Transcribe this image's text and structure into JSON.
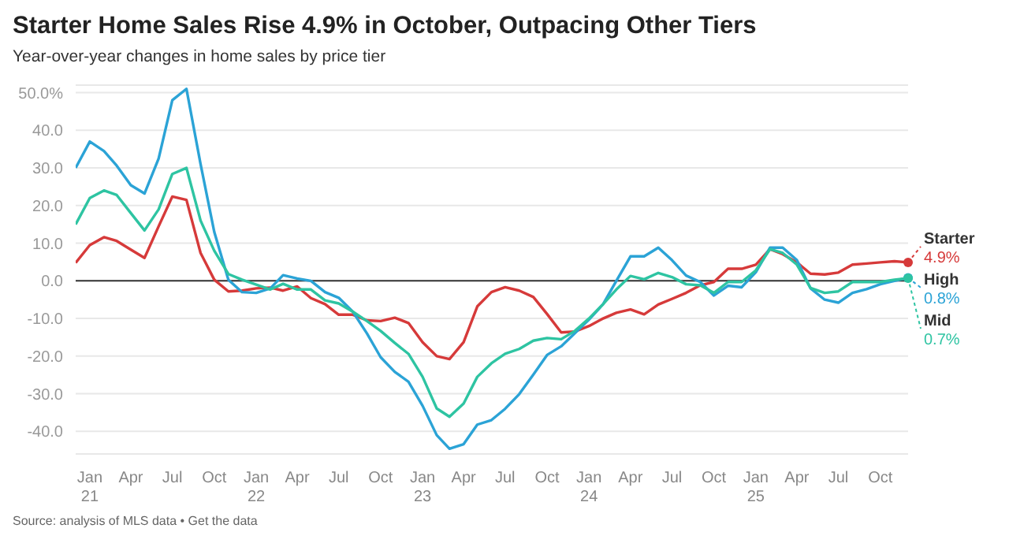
{
  "chart_data": {
    "type": "line",
    "title": "Starter Home Sales Rise 4.9% in October, Outpacing Other Tiers",
    "subtitle": "Year-over-year changes in home sales by price tier",
    "annotations": [
      "Source: analysis of MLS data • Get the data"
    ],
    "x": [
      "2020-12",
      "2021-01",
      "2021-02",
      "2021-03",
      "2021-04",
      "2021-05",
      "2021-06",
      "2021-07",
      "2021-08",
      "2021-09",
      "2021-10",
      "2021-11",
      "2021-12",
      "2022-01",
      "2022-02",
      "2022-03",
      "2022-04",
      "2022-05",
      "2022-06",
      "2022-07",
      "2022-08",
      "2022-09",
      "2022-10",
      "2022-11",
      "2022-12",
      "2023-01",
      "2023-02",
      "2023-03",
      "2023-04",
      "2023-05",
      "2023-06",
      "2023-07",
      "2023-08",
      "2023-09",
      "2023-10",
      "2023-11",
      "2023-12",
      "2024-01",
      "2024-02",
      "2024-03",
      "2024-04",
      "2024-05",
      "2024-06",
      "2024-07",
      "2024-08",
      "2024-09",
      "2024-10",
      "2024-11",
      "2024-12",
      "2025-01",
      "2025-02",
      "2025-03",
      "2025-04",
      "2025-05",
      "2025-06",
      "2025-07",
      "2025-08",
      "2025-09",
      "2025-10",
      "2025-11",
      "2025-12"
    ],
    "series": [
      {
        "name": "Starter",
        "color": "#d63a3a",
        "values": [
          4.8,
          9.5,
          11.6,
          10.6,
          8.3,
          6.1,
          14.5,
          22.4,
          21.5,
          7.4,
          0.3,
          -2.8,
          -2.6,
          -2,
          -1.8,
          -2.6,
          -1.5,
          -4.6,
          -6.2,
          -9,
          -9,
          -10.5,
          -10.7,
          -9.8,
          -11.2,
          -16.3,
          -20,
          -20.8,
          -16.3,
          -6.8,
          -3,
          -1.7,
          -2.6,
          -4.3,
          -8.8,
          -13.7,
          -13.5,
          -12,
          -10,
          -8.5,
          -7.6,
          -8.9,
          -6.3,
          -4.8,
          -3.2,
          -1.2,
          -0.3,
          3.2,
          3.2,
          4.3,
          8.4,
          7.1,
          4.9,
          1.9,
          1.7,
          2.2,
          4.3,
          4.6,
          4.9,
          5.2,
          4.9
        ],
        "value_labels": [
          null,
          null,
          null,
          null,
          null,
          null,
          null,
          null,
          null,
          null,
          null,
          null,
          null,
          null,
          null,
          null,
          null,
          null,
          null,
          null,
          null,
          null,
          null,
          null,
          null,
          null,
          null,
          null,
          null,
          null,
          null,
          null,
          null,
          null,
          null,
          null,
          null,
          null,
          null,
          null,
          null,
          null,
          null,
          null,
          null,
          null,
          null,
          null,
          null,
          null,
          null,
          null,
          null,
          null,
          null,
          null,
          null,
          null,
          null,
          null,
          "4.9%"
        ]
      },
      {
        "name": "High",
        "color": "#2ba3d6",
        "values": [
          30,
          37,
          34.5,
          30.6,
          25.4,
          23.2,
          32.5,
          48,
          51,
          31,
          13,
          0.3,
          -3,
          -3.2,
          -2,
          1.5,
          0.6,
          0,
          -3,
          -4.5,
          -8.2,
          -14,
          -20.3,
          -24.2,
          -26.8,
          -33.2,
          -41,
          -44.6,
          -43.4,
          -38.2,
          -37,
          -34,
          -30.1,
          -24.9,
          -19.7,
          -17.4,
          -13.9,
          -10.3,
          -6.2,
          0,
          6.5,
          6.5,
          8.8,
          5.5,
          1.4,
          -0.3,
          -3.9,
          -1.3,
          -1.7,
          2.3,
          8.8,
          8.8,
          5.5,
          -2,
          -5,
          -5.8,
          -3.2,
          -2.2,
          -0.9,
          0,
          0.8
        ],
        "value_labels": [
          null,
          null,
          null,
          null,
          null,
          null,
          null,
          null,
          null,
          null,
          null,
          null,
          null,
          null,
          null,
          null,
          null,
          null,
          null,
          null,
          null,
          null,
          null,
          null,
          null,
          null,
          null,
          null,
          null,
          null,
          null,
          null,
          null,
          null,
          null,
          null,
          null,
          null,
          null,
          null,
          null,
          null,
          null,
          null,
          null,
          null,
          null,
          null,
          null,
          null,
          null,
          null,
          null,
          null,
          null,
          null,
          null,
          null,
          null,
          null,
          "0.8%"
        ]
      },
      {
        "name": "Mid",
        "color": "#2ec4a2",
        "values": [
          15,
          22,
          24,
          22.8,
          18,
          13.4,
          19,
          28.4,
          30,
          16,
          8,
          1.8,
          0.3,
          -1,
          -2.3,
          -0.8,
          -2.3,
          -2.3,
          -5.2,
          -6,
          -8.2,
          -10.7,
          -13.3,
          -16.5,
          -19.4,
          -25.5,
          -33.9,
          -36.1,
          -32.6,
          -25.5,
          -21.9,
          -19.4,
          -18.1,
          -15.9,
          -15.2,
          -15.5,
          -13.3,
          -10,
          -6.2,
          -2.3,
          1.3,
          0.4,
          2.1,
          1,
          -0.9,
          -1.2,
          -3.2,
          -0.3,
          -0.3,
          2.8,
          8.4,
          7.4,
          4.3,
          -1.9,
          -3.2,
          -2.8,
          -0.3,
          -0.3,
          -0.3,
          0.3,
          0.7
        ],
        "value_labels": [
          null,
          null,
          null,
          null,
          null,
          null,
          null,
          null,
          null,
          null,
          null,
          null,
          null,
          null,
          null,
          null,
          null,
          null,
          null,
          null,
          null,
          null,
          null,
          null,
          null,
          null,
          null,
          null,
          null,
          null,
          null,
          null,
          null,
          null,
          null,
          null,
          null,
          null,
          null,
          null,
          null,
          null,
          null,
          null,
          null,
          null,
          null,
          null,
          null,
          null,
          null,
          null,
          null,
          null,
          null,
          null,
          null,
          null,
          null,
          null,
          "0.7%"
        ]
      }
    ],
    "xlim": [
      "2020-12",
      "2025-12"
    ],
    "xticks": [
      {
        "value": "2021-01",
        "label": "Jan 21"
      },
      {
        "value": "2021-04",
        "label": "Apr"
      },
      {
        "value": "2021-07",
        "label": "Jul"
      },
      {
        "value": "2021-10",
        "label": "Oct"
      },
      {
        "value": "2022-01",
        "label": "Jan 22"
      },
      {
        "value": "2022-04",
        "label": "Apr"
      },
      {
        "value": "2022-07",
        "label": "Jul"
      },
      {
        "value": "2022-10",
        "label": "Oct"
      },
      {
        "value": "2023-01",
        "label": "Jan 23"
      },
      {
        "value": "2023-04",
        "label": "Apr"
      },
      {
        "value": "2023-07",
        "label": "Jul"
      },
      {
        "value": "2023-10",
        "label": "Oct"
      },
      {
        "value": "2024-01",
        "label": "Jan 24"
      },
      {
        "value": "2024-04",
        "label": "Apr"
      },
      {
        "value": "2024-07",
        "label": "Jul"
      },
      {
        "value": "2024-10",
        "label": "Oct"
      },
      {
        "value": "2025-01",
        "label": "Jan 25"
      },
      {
        "value": "2025-04",
        "label": "Apr"
      },
      {
        "value": "2025-07",
        "label": "Jul"
      },
      {
        "value": "2025-10",
        "label": "Oct"
      }
    ],
    "ylim": [
      -46,
      52
    ],
    "yticks": [
      {
        "value": -40,
        "label": "-40.0"
      },
      {
        "value": -30,
        "label": "-30.0"
      },
      {
        "value": -20,
        "label": "-20.0"
      },
      {
        "value": -10,
        "label": "-10.0"
      },
      {
        "value": 0,
        "label": "0.0"
      },
      {
        "value": 10,
        "label": "10.0"
      },
      {
        "value": 20,
        "label": "20.0"
      },
      {
        "value": 30,
        "label": "30.0"
      },
      {
        "value": 40,
        "label": "40.0"
      },
      {
        "value": 50,
        "label": "50.0%"
      }
    ],
    "ref_lines": [
      {
        "axis": "y",
        "value": 0,
        "color": "#333333"
      }
    ],
    "grid": "y",
    "marker": "none",
    "line_style": "solid"
  }
}
